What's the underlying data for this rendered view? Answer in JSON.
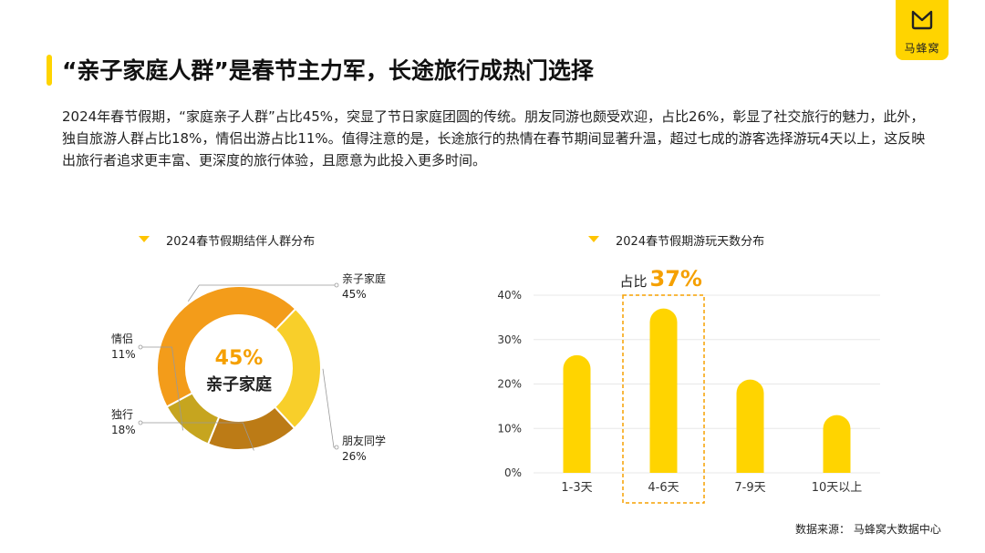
{
  "brand": {
    "logo_text": "马蜂窝"
  },
  "title": "“亲子家庭人群”是春节主力军，长途旅行成热门选择",
  "body": "2024年春节假期，“家庭亲子人群”占比45%，突显了节日家庭团圆的传统。朋友同游也颇受欢迎，占比26%，彰显了社交旅行的魅力，此外，独自旅游人群占比18%，情侣出游占比11%。值得注意的是，长途旅行的热情在春节期间显著升温，超过七成的游客选择游玩4天以上，这反映出旅行者追求更丰富、更深度的旅行体验，且愿意为此投入更多时间。",
  "colors": {
    "accent": "#ffd400",
    "orange": "#f39c1a",
    "highlight": "#f5a000"
  },
  "chart_data": [
    {
      "type": "pie",
      "title": "2024春节假期结伴人群分布",
      "center_value": "45%",
      "center_label": "亲子家庭",
      "slices": [
        {
          "name": "亲子家庭",
          "value": 45,
          "label": "45%",
          "color": "#f39c1a"
        },
        {
          "name": "朋友同学",
          "value": 26,
          "label": "26%",
          "color": "#f8cf2a"
        },
        {
          "name": "独行",
          "value": 18,
          "label": "18%",
          "color": "#bc7b16"
        },
        {
          "name": "情侣",
          "value": 11,
          "label": "11%",
          "color": "#c6a51f"
        }
      ]
    },
    {
      "type": "bar",
      "title": "2024春节假期游玩天数分布",
      "categories": [
        "1-3天",
        "4-6天",
        "7-9天",
        "10天以上"
      ],
      "values": [
        26.5,
        37,
        21,
        13
      ],
      "ylim": [
        0,
        40
      ],
      "yticks": [
        "0%",
        "10%",
        "20%",
        "30%",
        "40%"
      ],
      "grid": true,
      "annotation": {
        "prefix": "占比",
        "value": "37%",
        "category": "4-6天"
      }
    }
  ],
  "source": "数据来源：  马蜂窝大数据中心"
}
